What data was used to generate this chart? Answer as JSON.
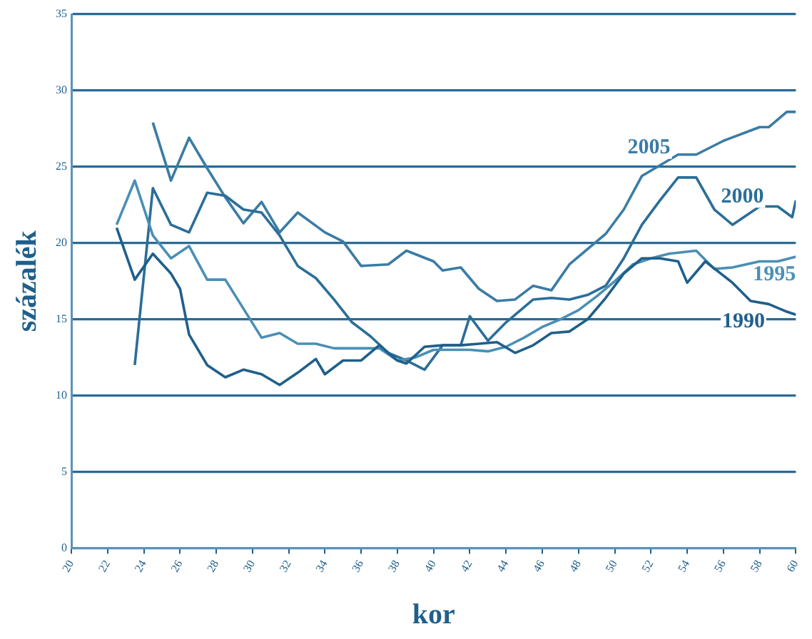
{
  "chart_data": {
    "type": "line",
    "xlabel": "kor",
    "ylabel": "százalék",
    "xlim": [
      20,
      60
    ],
    "xticks": [
      20,
      22,
      24,
      26,
      28,
      30,
      32,
      34,
      36,
      38,
      40,
      42,
      44,
      46,
      48,
      50,
      52,
      54,
      56,
      58,
      60
    ],
    "ylim": [
      0,
      35
    ],
    "yticks": [
      0,
      5,
      10,
      15,
      20,
      25,
      30,
      35
    ],
    "grid": "y",
    "legend": false,
    "marker": "none",
    "line_style": "solid",
    "series": [
      {
        "name": "1990",
        "color": "#1f5f8b",
        "x": [
          22.5,
          23.5,
          24.5,
          25.5,
          26,
          26.5,
          27.5,
          28.5,
          29.5,
          30.5,
          31.5,
          32.5,
          33.5,
          34,
          35,
          36,
          37,
          38,
          38.5,
          39.5,
          40.5,
          41.5,
          42.5,
          43.5,
          44.5,
          45.5,
          46.5,
          47.5,
          48.5,
          49.5,
          50.5,
          51.5,
          52.5,
          53.5,
          54,
          55,
          56.5,
          57.5,
          58.5,
          59.5,
          60
        ],
        "values": [
          21,
          17.6,
          19.3,
          18,
          17,
          14,
          12,
          11.2,
          11.7,
          11.4,
          10.7,
          11.5,
          12.4,
          11.4,
          12.3,
          12.3,
          13.3,
          12.3,
          12.1,
          13.2,
          13.3,
          13.3,
          13.4,
          13.5,
          12.8,
          13.3,
          14.1,
          14.2,
          15,
          16.4,
          18,
          19,
          19,
          18.8,
          17.4,
          18.8,
          17.4,
          16.2,
          16,
          15.5,
          15.3
        ]
      },
      {
        "name": "1995",
        "color": "#4a8fb5",
        "x": [
          22.5,
          23.5,
          24.5,
          25.5,
          26.5,
          27.5,
          28.5,
          30.5,
          31.5,
          32.5,
          33.5,
          34.5,
          37,
          38,
          39,
          40,
          41,
          42,
          43,
          44,
          45,
          46,
          47,
          48,
          49,
          50,
          51,
          52,
          53,
          54.5,
          55.5,
          56.5,
          58,
          59,
          60
        ],
        "values": [
          21.2,
          24.1,
          20.5,
          19,
          19.8,
          17.6,
          17.6,
          13.8,
          14.1,
          13.4,
          13.4,
          13.1,
          13.1,
          12.3,
          12.5,
          13,
          13,
          13,
          12.9,
          13.2,
          13.8,
          14.5,
          15,
          15.6,
          16.5,
          17.5,
          18.6,
          19,
          19.3,
          19.5,
          18.3,
          18.4,
          18.8,
          18.8,
          19.1
        ]
      },
      {
        "name": "2000",
        "color": "#2b6e99",
        "x": [
          23.5,
          24.5,
          25.5,
          26.5,
          27.5,
          28.5,
          29.5,
          30.5,
          31.5,
          32.5,
          33.5,
          34.5,
          35.5,
          36.5,
          37.5,
          38.5,
          39.5,
          40.5,
          41.5,
          42,
          43,
          44,
          45.5,
          46.5,
          47.5,
          48.5,
          49.5,
          50.5,
          51.5,
          52.5,
          53.5,
          54.5,
          55.5,
          56.5,
          58,
          59,
          59.8,
          60
        ],
        "values": [
          12,
          23.6,
          21.2,
          20.7,
          23.3,
          23.1,
          22.2,
          22,
          20.5,
          18.5,
          17.7,
          16.3,
          14.8,
          13.9,
          12.8,
          12.3,
          11.7,
          13.3,
          13.3,
          15.2,
          13.6,
          14.8,
          16.3,
          16.4,
          16.3,
          16.6,
          17.2,
          19,
          21.2,
          22.8,
          24.3,
          24.3,
          22.2,
          21.2,
          22.4,
          22.4,
          21.7,
          22.8
        ]
      },
      {
        "name": "2005",
        "color": "#3a7ca5",
        "x": [
          24.5,
          25.5,
          26.5,
          27.5,
          28.5,
          29.5,
          30.5,
          31.5,
          32.5,
          34,
          35,
          36,
          37.5,
          38.5,
          40,
          40.5,
          41.5,
          42.5,
          43.5,
          44.5,
          45.5,
          46.5,
          47.5,
          49.5,
          50.5,
          51.5,
          53.5,
          54.5,
          56,
          58,
          58.5,
          59.5,
          60
        ],
        "values": [
          27.9,
          24.1,
          26.9,
          24.9,
          23,
          21.3,
          22.7,
          20.7,
          22,
          20.7,
          20.1,
          18.5,
          18.6,
          19.5,
          18.8,
          18.2,
          18.4,
          17,
          16.2,
          16.3,
          17.2,
          16.9,
          18.6,
          20.6,
          22.2,
          24.4,
          25.8,
          25.8,
          26.7,
          27.6,
          27.6,
          28.6,
          28.6
        ]
      }
    ]
  }
}
